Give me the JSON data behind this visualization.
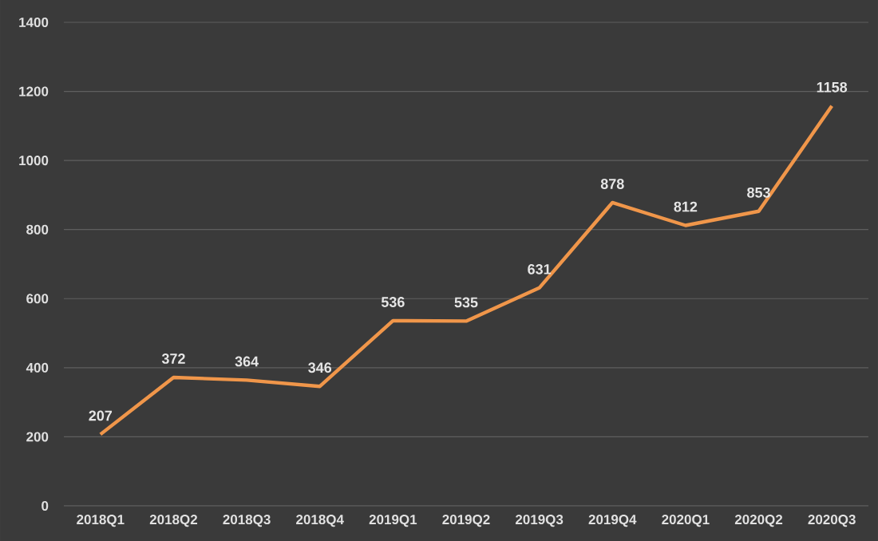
{
  "chart_data": {
    "type": "line",
    "categories": [
      "2018Q1",
      "2018Q2",
      "2018Q3",
      "2018Q4",
      "2019Q1",
      "2019Q2",
      "2019Q3",
      "2019Q4",
      "2020Q1",
      "2020Q2",
      "2020Q3"
    ],
    "values": [
      207,
      372,
      364,
      346,
      536,
      535,
      631,
      878,
      812,
      853,
      1158
    ],
    "color": "#f0964a",
    "ylim": [
      0,
      1400
    ],
    "yticks": [
      0,
      200,
      400,
      600,
      800,
      1000,
      1200,
      1400
    ],
    "grid": "y",
    "data_labels": true,
    "marker": "none",
    "line_style": "solid"
  }
}
